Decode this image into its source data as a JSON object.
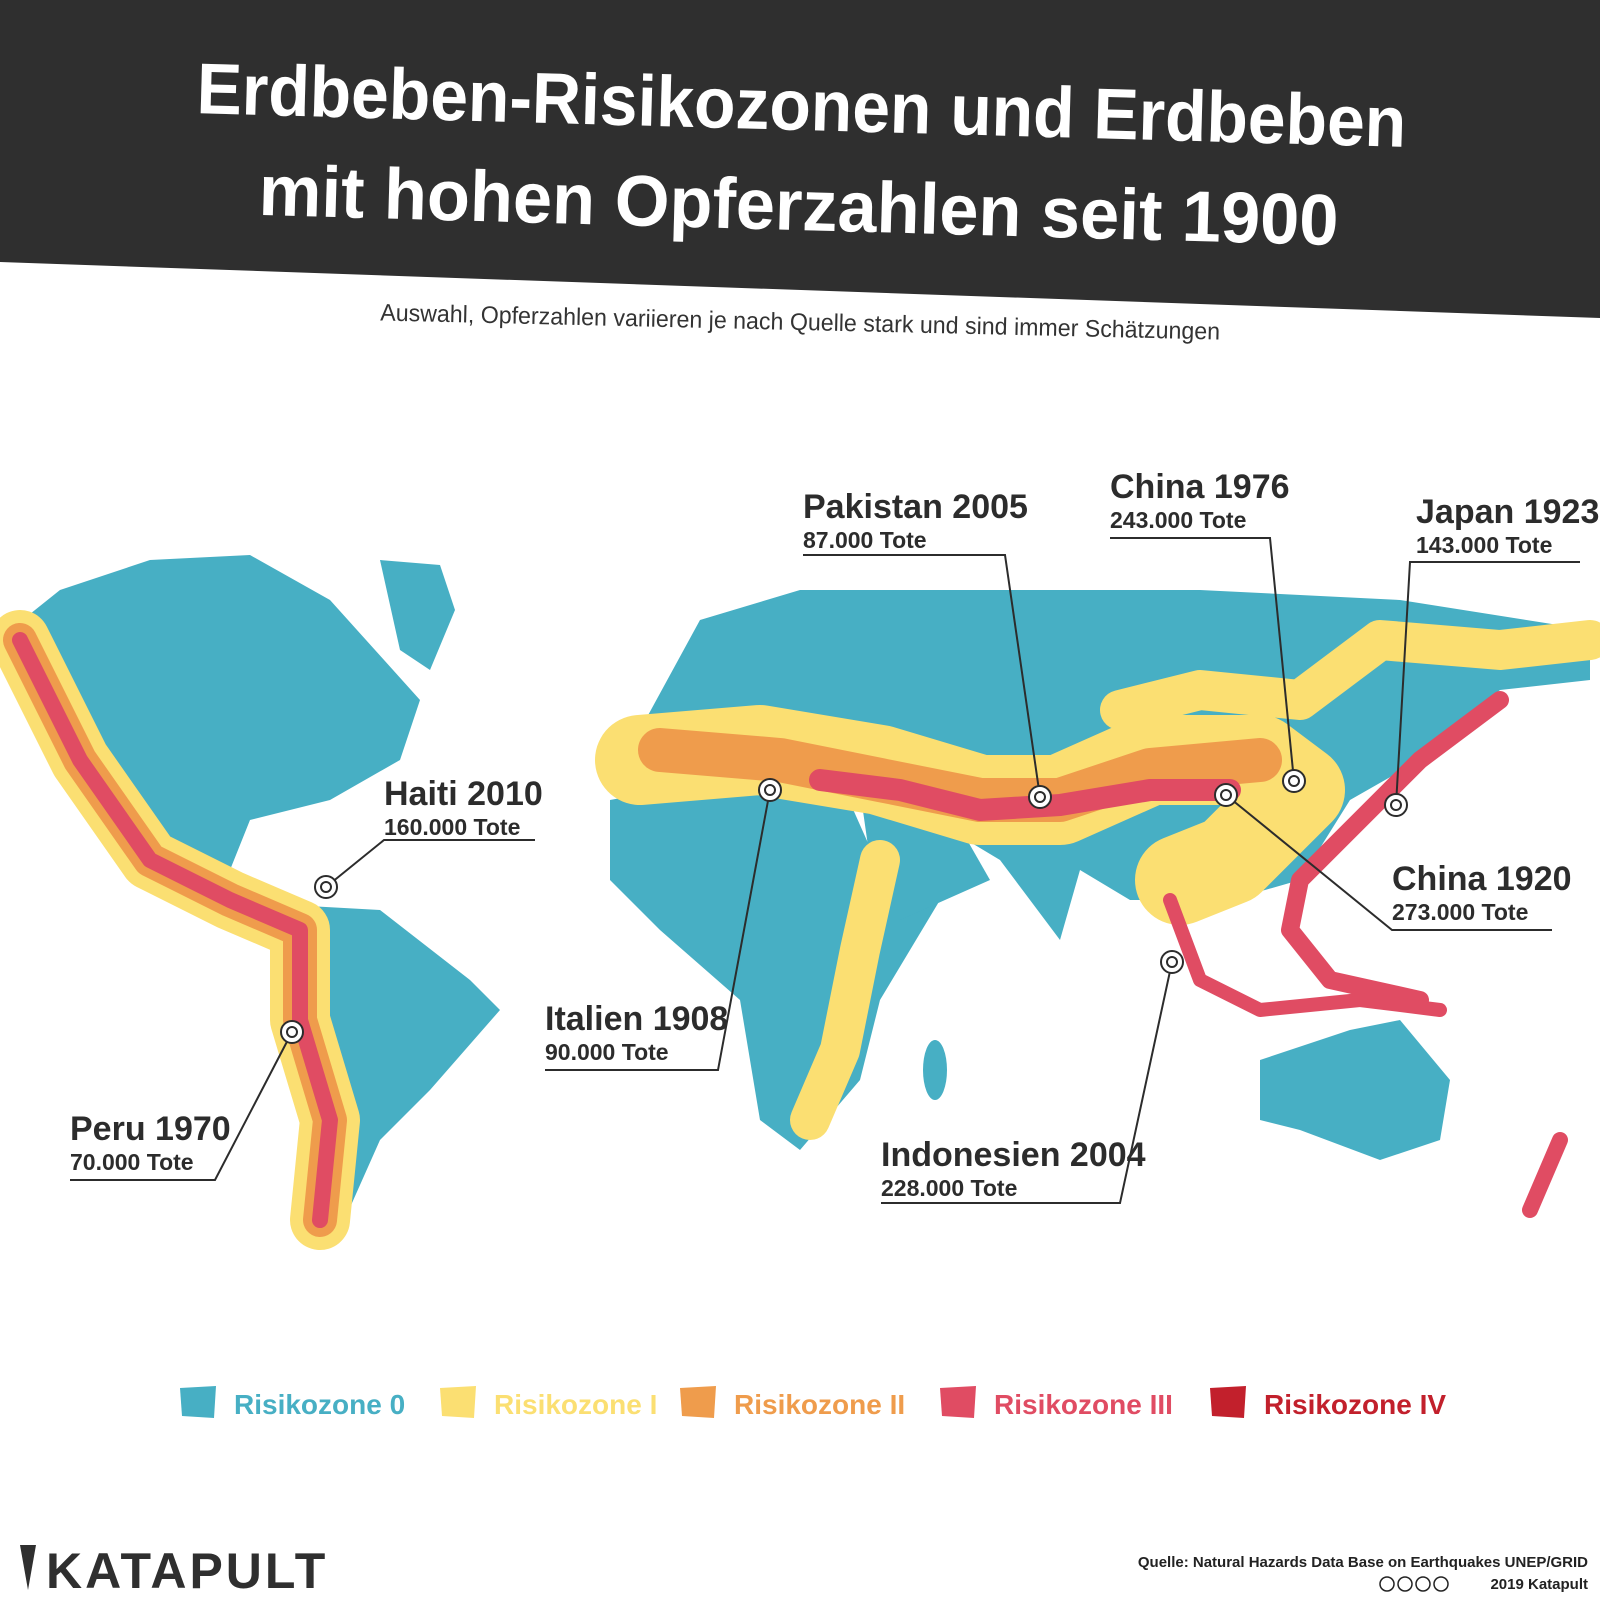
{
  "header": {
    "title_lines": [
      "Erdbeben-Risikozonen und Erdbeben",
      "mit hohen Opferzahlen seit 1900"
    ],
    "subtitle": "Auswahl, Opferzahlen variieren je nach Quelle stark und sind immer Schätzungen"
  },
  "map": {
    "events": [
      {
        "place": "Pakistan 2005",
        "deaths": "87.000 Tote"
      },
      {
        "place": "China 1976",
        "deaths": "243.000 Tote"
      },
      {
        "place": "Japan 1923",
        "deaths": "143.000 Tote"
      },
      {
        "place": "Haiti 2010",
        "deaths": "160.000 Tote"
      },
      {
        "place": "China 1920",
        "deaths": "273.000 Tote"
      },
      {
        "place": "Italien 1908",
        "deaths": "90.000 Tote"
      },
      {
        "place": "Peru 1970",
        "deaths": "70.000 Tote"
      },
      {
        "place": "Indonesien 2004",
        "deaths": "228.000 Tote"
      }
    ]
  },
  "legend": [
    {
      "label": "Risikozone 0",
      "color": "#47afc4"
    },
    {
      "label": "Risikozone I",
      "color": "#fbdf72"
    },
    {
      "label": "Risikozone II",
      "color": "#ef9c4c"
    },
    {
      "label": "Risikozone III",
      "color": "#e04c63"
    },
    {
      "label": "Risikozone IV",
      "color": "#c2202c"
    }
  ],
  "footer": {
    "brand": "KATAPULT",
    "source": "Quelle: Natural Hazards Data Base on Earthquakes UNEP/GRID",
    "copyright": "2019 Katapult"
  }
}
